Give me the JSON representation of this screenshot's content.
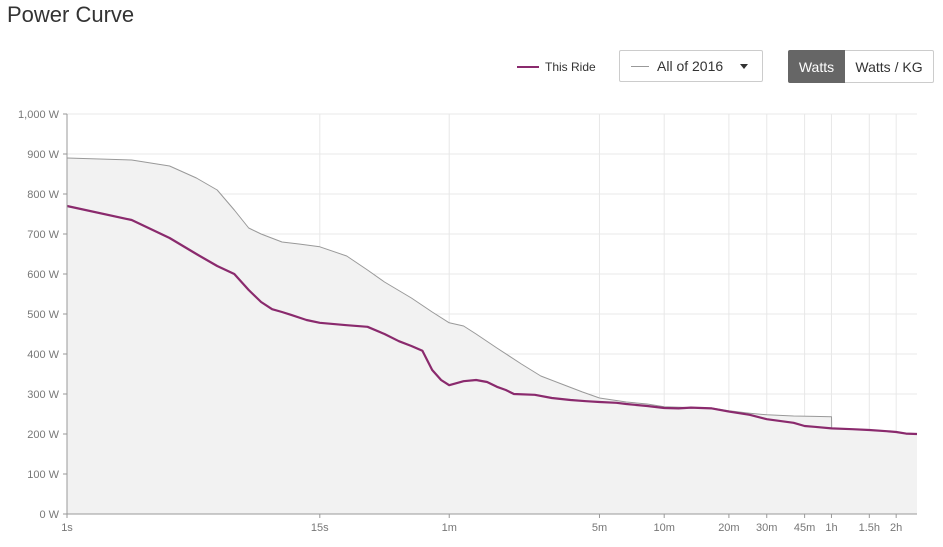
{
  "header": {
    "title": "Power Curve"
  },
  "legend": {
    "this_ride_label": "This Ride",
    "this_ride_color": "#8a2a6d"
  },
  "compare_dropdown": {
    "selected": "All of 2016",
    "line_color": "#999999"
  },
  "unit_toggle": {
    "watts_label": "Watts",
    "watts_per_kg_label": "Watts / KG",
    "active": "Watts"
  },
  "chart_data": {
    "type": "line",
    "title": "Power Curve",
    "xlabel": "",
    "ylabel": "",
    "ylim": [
      0,
      1000
    ],
    "x_scale": "log",
    "xlim_seconds": [
      1,
      9000
    ],
    "y_ticks": [
      {
        "value": 0,
        "label": "0 W"
      },
      {
        "value": 100,
        "label": "100 W"
      },
      {
        "value": 200,
        "label": "200 W"
      },
      {
        "value": 300,
        "label": "300 W"
      },
      {
        "value": 400,
        "label": "400 W"
      },
      {
        "value": 500,
        "label": "500 W"
      },
      {
        "value": 600,
        "label": "600 W"
      },
      {
        "value": 700,
        "label": "700 W"
      },
      {
        "value": 800,
        "label": "800 W"
      },
      {
        "value": 900,
        "label": "900 W"
      },
      {
        "value": 1000,
        "label": "1,000 W"
      }
    ],
    "x_ticks": [
      {
        "seconds": 1,
        "label": "1s"
      },
      {
        "seconds": 15,
        "label": "15s"
      },
      {
        "seconds": 60,
        "label": "1m"
      },
      {
        "seconds": 300,
        "label": "5m"
      },
      {
        "seconds": 600,
        "label": "10m"
      },
      {
        "seconds": 1200,
        "label": "20m"
      },
      {
        "seconds": 1800,
        "label": "30m"
      },
      {
        "seconds": 2700,
        "label": "45m"
      },
      {
        "seconds": 3600,
        "label": "1h"
      },
      {
        "seconds": 5400,
        "label": "1.5h"
      },
      {
        "seconds": 7200,
        "label": "2h"
      }
    ],
    "series": [
      {
        "name": "All of 2016",
        "color": "#999999",
        "fill": "#f2f2f2",
        "points": [
          [
            1,
            890
          ],
          [
            2,
            885
          ],
          [
            3,
            870
          ],
          [
            4,
            840
          ],
          [
            5,
            810
          ],
          [
            6,
            760
          ],
          [
            7,
            715
          ],
          [
            8,
            700
          ],
          [
            10,
            680
          ],
          [
            12,
            675
          ],
          [
            15,
            668
          ],
          [
            20,
            645
          ],
          [
            25,
            610
          ],
          [
            30,
            580
          ],
          [
            40,
            540
          ],
          [
            50,
            505
          ],
          [
            60,
            478
          ],
          [
            70,
            470
          ],
          [
            80,
            450
          ],
          [
            100,
            415
          ],
          [
            130,
            375
          ],
          [
            160,
            345
          ],
          [
            200,
            325
          ],
          [
            250,
            305
          ],
          [
            300,
            290
          ],
          [
            400,
            280
          ],
          [
            500,
            275
          ],
          [
            600,
            268
          ],
          [
            800,
            266
          ],
          [
            1000,
            265
          ],
          [
            1200,
            258
          ],
          [
            1500,
            252
          ],
          [
            1800,
            248
          ],
          [
            2400,
            245
          ],
          [
            3000,
            244
          ],
          [
            3600,
            243
          ],
          [
            3610,
            215
          ],
          [
            4500,
            212
          ],
          [
            5400,
            210
          ],
          [
            6500,
            207
          ],
          [
            7200,
            205
          ],
          [
            8000,
            202
          ],
          [
            9000,
            200
          ]
        ]
      },
      {
        "name": "This Ride",
        "color": "#8a2a6d",
        "points": [
          [
            1,
            770
          ],
          [
            2,
            735
          ],
          [
            3,
            690
          ],
          [
            4,
            650
          ],
          [
            5,
            620
          ],
          [
            6,
            600
          ],
          [
            7,
            560
          ],
          [
            8,
            530
          ],
          [
            9,
            512
          ],
          [
            10,
            505
          ],
          [
            11,
            498
          ],
          [
            13,
            485
          ],
          [
            15,
            478
          ],
          [
            20,
            472
          ],
          [
            25,
            468
          ],
          [
            30,
            450
          ],
          [
            35,
            432
          ],
          [
            40,
            420
          ],
          [
            45,
            408
          ],
          [
            50,
            360
          ],
          [
            55,
            335
          ],
          [
            60,
            322
          ],
          [
            70,
            332
          ],
          [
            80,
            335
          ],
          [
            90,
            330
          ],
          [
            100,
            318
          ],
          [
            110,
            310
          ],
          [
            120,
            300
          ],
          [
            150,
            298
          ],
          [
            180,
            290
          ],
          [
            220,
            285
          ],
          [
            260,
            282
          ],
          [
            300,
            280
          ],
          [
            360,
            278
          ],
          [
            400,
            275
          ],
          [
            500,
            270
          ],
          [
            600,
            265
          ],
          [
            700,
            264
          ],
          [
            800,
            266
          ],
          [
            1000,
            264
          ],
          [
            1200,
            256
          ],
          [
            1500,
            248
          ],
          [
            1800,
            237
          ],
          [
            2400,
            228
          ],
          [
            2700,
            220
          ],
          [
            3000,
            218
          ],
          [
            3600,
            214
          ],
          [
            4500,
            212
          ],
          [
            5400,
            210
          ],
          [
            6500,
            207
          ],
          [
            7200,
            205
          ],
          [
            8000,
            201
          ],
          [
            9000,
            200
          ]
        ]
      }
    ]
  }
}
